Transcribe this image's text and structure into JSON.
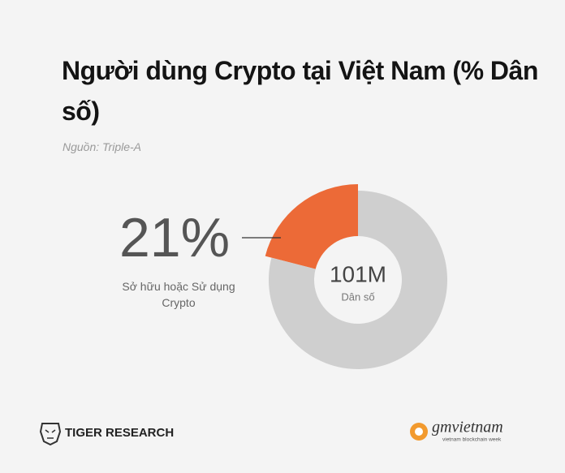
{
  "chart_data": {
    "type": "donut",
    "title": "Người dùng Crypto tại Việt Nam (% Dân số)",
    "subtitle": "Nguồn: Triple-A",
    "categories": [
      "Sở hữu hoặc Sử dụng Crypto",
      null
    ],
    "values": [
      21,
      79
    ],
    "value_labels": [
      "21%",
      null
    ],
    "colors": [
      "#ec6a37",
      "#cfcfcf"
    ],
    "center_label": "101M",
    "center_sublabel": "Dân số"
  },
  "footer": {
    "left": "TIGER RESEARCH",
    "right": "gmvietnam",
    "right_sub": "vietnam blockchain week"
  }
}
